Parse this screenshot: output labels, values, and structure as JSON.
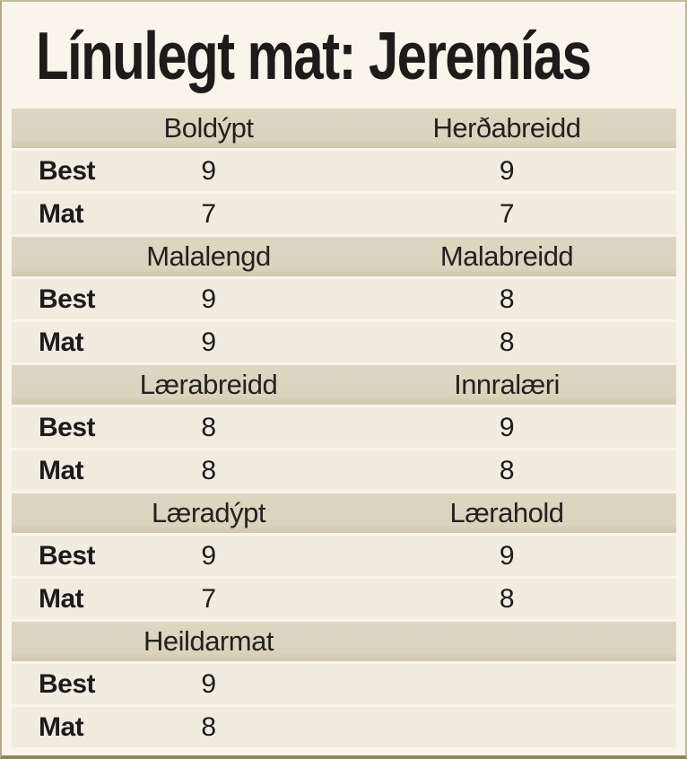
{
  "chart_data": {
    "type": "table",
    "title": "Línulegt mat: Jeremías",
    "row_labels": {
      "best": "Best",
      "mat": "Mat"
    },
    "sections": [
      {
        "headers": [
          "Boldýpt",
          "Herðabreidd"
        ],
        "best": [
          "9",
          "9"
        ],
        "mat": [
          "7",
          "7"
        ]
      },
      {
        "headers": [
          "Malalengd",
          "Malabreidd"
        ],
        "best": [
          "9",
          "8"
        ],
        "mat": [
          "9",
          "8"
        ]
      },
      {
        "headers": [
          "Lærabreidd",
          "Innralæri"
        ],
        "best": [
          "8",
          "9"
        ],
        "mat": [
          "8",
          "8"
        ]
      },
      {
        "headers": [
          "Læradýpt",
          "Lærahold"
        ],
        "best": [
          "9",
          "9"
        ],
        "mat": [
          "7",
          "8"
        ]
      },
      {
        "headers": [
          "Heildarmat",
          ""
        ],
        "best": [
          "9",
          ""
        ],
        "mat": [
          "8",
          ""
        ]
      }
    ],
    "layout": {
      "legend_position": "none",
      "grid": "off",
      "row_band_style": "alternating cream bands with tan section headers"
    }
  },
  "colors": {
    "background": "#faf5eb",
    "header_band": "#dad3be",
    "row_band": "#f0ecdf",
    "border": "#b3a883",
    "border_bottom": "#8d8464",
    "text": "#1d1c1a"
  }
}
